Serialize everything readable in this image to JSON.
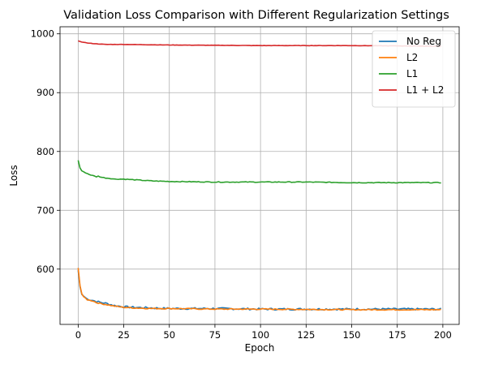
{
  "chart_data": {
    "type": "line",
    "title": "Validation Loss Comparison with Different Regularization Settings",
    "xlabel": "Epoch",
    "ylabel": "Loss",
    "xlim": [
      -9.95,
      208.95
    ],
    "ylim": [
      506,
      1012
    ],
    "xticks": [
      0,
      25,
      50,
      75,
      100,
      125,
      150,
      175,
      200
    ],
    "yticks": [
      600,
      700,
      800,
      900,
      1000
    ],
    "grid": true,
    "legend_position": "top-right",
    "series": [
      {
        "name": "No Reg",
        "color": "#1f77b4",
        "keypoints": [
          [
            0,
            598
          ],
          [
            1,
            570
          ],
          [
            2,
            557
          ],
          [
            3,
            554
          ],
          [
            5,
            549
          ],
          [
            8,
            547
          ],
          [
            10,
            545
          ],
          [
            13,
            543
          ],
          [
            15,
            542
          ],
          [
            20,
            538
          ],
          [
            25,
            536
          ],
          [
            30,
            535
          ],
          [
            40,
            534
          ],
          [
            50,
            533
          ],
          [
            75,
            533
          ],
          [
            100,
            532
          ],
          [
            150,
            532
          ],
          [
            199,
            532
          ]
        ],
        "noise": 1.6
      },
      {
        "name": "L2",
        "color": "#ff7f0e",
        "keypoints": [
          [
            0,
            602
          ],
          [
            1,
            572
          ],
          [
            2,
            558
          ],
          [
            3,
            553
          ],
          [
            5,
            548
          ],
          [
            8,
            546
          ],
          [
            10,
            543
          ],
          [
            13,
            541
          ],
          [
            15,
            540
          ],
          [
            20,
            537
          ],
          [
            25,
            535
          ],
          [
            30,
            534
          ],
          [
            40,
            533
          ],
          [
            50,
            533
          ],
          [
            75,
            532
          ],
          [
            100,
            532
          ],
          [
            150,
            531
          ],
          [
            199,
            531
          ]
        ],
        "noise": 0.9
      },
      {
        "name": "L1",
        "color": "#2ca02c",
        "keypoints": [
          [
            0,
            785
          ],
          [
            1,
            772
          ],
          [
            2,
            767
          ],
          [
            4,
            764
          ],
          [
            6,
            761
          ],
          [
            9,
            758
          ],
          [
            10,
            757
          ],
          [
            11,
            758
          ],
          [
            13,
            756
          ],
          [
            15,
            755
          ],
          [
            18,
            754
          ],
          [
            20,
            753
          ],
          [
            25,
            753
          ],
          [
            30,
            752
          ],
          [
            35,
            751
          ],
          [
            40,
            750
          ],
          [
            50,
            749
          ],
          [
            75,
            748
          ],
          [
            100,
            748
          ],
          [
            125,
            748
          ],
          [
            150,
            747
          ],
          [
            175,
            747
          ],
          [
            199,
            747
          ]
        ],
        "noise": 0.6
      },
      {
        "name": "L1 + L2",
        "color": "#d62728",
        "keypoints": [
          [
            0,
            988
          ],
          [
            2,
            986
          ],
          [
            4,
            985
          ],
          [
            6,
            984
          ],
          [
            10,
            983
          ],
          [
            15,
            982
          ],
          [
            25,
            982
          ],
          [
            50,
            981
          ],
          [
            100,
            980
          ],
          [
            150,
            980
          ],
          [
            199,
            979
          ]
        ],
        "noise": 0.25
      }
    ]
  }
}
